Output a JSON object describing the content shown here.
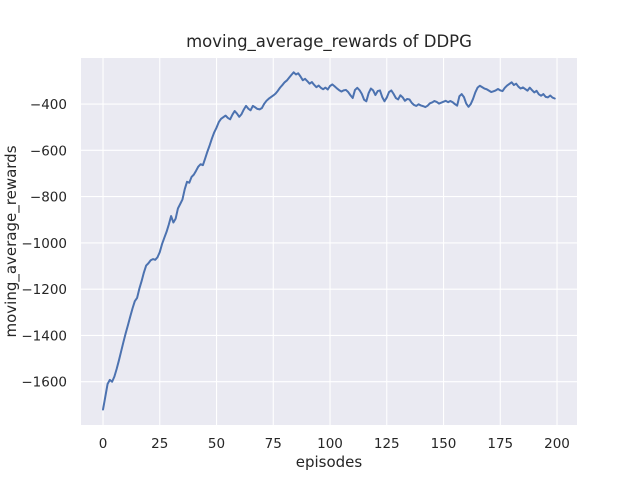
{
  "chart_data": {
    "type": "line",
    "title": "moving_average_rewards of DDPG",
    "xlabel": "episodes",
    "ylabel": "moving_average_rewards",
    "x_ticks": [
      0,
      25,
      50,
      75,
      100,
      125,
      150,
      175,
      200
    ],
    "y_ticks": [
      -400,
      -600,
      -800,
      -1000,
      -1200,
      -1400,
      -1600
    ],
    "xlim": [
      -9.7,
      208.8
    ],
    "ylim": [
      -1787,
      -201
    ],
    "grid": true,
    "legend_visible": false,
    "style": {
      "figure_bg": "#ffffff",
      "axes_bg": "#eaeaf2",
      "grid_color": "#ffffff",
      "line_color": "#4c72b0",
      "text_color": "#262626"
    },
    "series": [
      {
        "name": "DDPG",
        "x": [
          0,
          1,
          2,
          3,
          4,
          5,
          6,
          7,
          8,
          9,
          10,
          11,
          12,
          13,
          14,
          15,
          16,
          17,
          18,
          19,
          20,
          21,
          22,
          23,
          24,
          25,
          26,
          27,
          28,
          29,
          30,
          31,
          32,
          33,
          34,
          35,
          36,
          37,
          38,
          39,
          40,
          41,
          42,
          43,
          44,
          45,
          46,
          47,
          48,
          49,
          50,
          51,
          52,
          53,
          54,
          55,
          56,
          57,
          58,
          59,
          60,
          61,
          62,
          63,
          64,
          65,
          66,
          67,
          68,
          69,
          70,
          71,
          72,
          73,
          74,
          75,
          76,
          77,
          78,
          79,
          80,
          81,
          82,
          83,
          84,
          85,
          86,
          87,
          88,
          89,
          90,
          91,
          92,
          93,
          94,
          95,
          96,
          97,
          98,
          99,
          100,
          101,
          102,
          103,
          104,
          105,
          106,
          107,
          108,
          109,
          110,
          111,
          112,
          113,
          114,
          115,
          116,
          117,
          118,
          119,
          120,
          121,
          122,
          123,
          124,
          125,
          126,
          127,
          128,
          129,
          130,
          131,
          132,
          133,
          134,
          135,
          136,
          137,
          138,
          139,
          140,
          141,
          142,
          143,
          144,
          145,
          146,
          147,
          148,
          149,
          150,
          151,
          152,
          153,
          154,
          155,
          156,
          157,
          158,
          159,
          160,
          161,
          162,
          163,
          164,
          165,
          166,
          167,
          168,
          169,
          170,
          171,
          172,
          173,
          174,
          175,
          176,
          177,
          178,
          179,
          180,
          181,
          182,
          183,
          184,
          185,
          186,
          187,
          188,
          189,
          190,
          191,
          192,
          193,
          194,
          195,
          196,
          197,
          198,
          199
        ],
        "y": [
          -1720,
          -1665,
          -1610,
          -1592,
          -1600,
          -1578,
          -1545,
          -1508,
          -1468,
          -1428,
          -1390,
          -1355,
          -1318,
          -1283,
          -1252,
          -1238,
          -1198,
          -1165,
          -1128,
          -1098,
          -1088,
          -1075,
          -1070,
          -1073,
          -1062,
          -1040,
          -1005,
          -978,
          -952,
          -920,
          -884,
          -912,
          -895,
          -851,
          -832,
          -812,
          -768,
          -736,
          -740,
          -715,
          -705,
          -688,
          -670,
          -660,
          -664,
          -635,
          -605,
          -578,
          -548,
          -522,
          -502,
          -478,
          -464,
          -457,
          -450,
          -460,
          -466,
          -446,
          -430,
          -441,
          -455,
          -444,
          -424,
          -408,
          -420,
          -427,
          -408,
          -414,
          -421,
          -423,
          -417,
          -399,
          -386,
          -377,
          -370,
          -363,
          -355,
          -343,
          -329,
          -318,
          -306,
          -298,
          -286,
          -274,
          -263,
          -272,
          -267,
          -281,
          -297,
          -291,
          -301,
          -312,
          -305,
          -317,
          -327,
          -320,
          -330,
          -336,
          -329,
          -337,
          -322,
          -315,
          -323,
          -332,
          -340,
          -346,
          -341,
          -339,
          -348,
          -362,
          -374,
          -339,
          -330,
          -340,
          -356,
          -381,
          -388,
          -353,
          -333,
          -341,
          -361,
          -344,
          -341,
          -370,
          -388,
          -372,
          -348,
          -341,
          -356,
          -374,
          -380,
          -362,
          -371,
          -386,
          -378,
          -380,
          -395,
          -404,
          -408,
          -401,
          -406,
          -409,
          -413,
          -407,
          -397,
          -393,
          -387,
          -391,
          -398,
          -394,
          -390,
          -386,
          -392,
          -387,
          -392,
          -400,
          -407,
          -366,
          -357,
          -370,
          -398,
          -412,
          -400,
          -378,
          -350,
          -329,
          -321,
          -327,
          -333,
          -336,
          -342,
          -348,
          -345,
          -341,
          -335,
          -341,
          -344,
          -330,
          -320,
          -313,
          -306,
          -318,
          -312,
          -325,
          -333,
          -328,
          -335,
          -342,
          -329,
          -340,
          -350,
          -343,
          -358,
          -364,
          -357,
          -369,
          -371,
          -363,
          -372,
          -376
        ]
      }
    ]
  }
}
